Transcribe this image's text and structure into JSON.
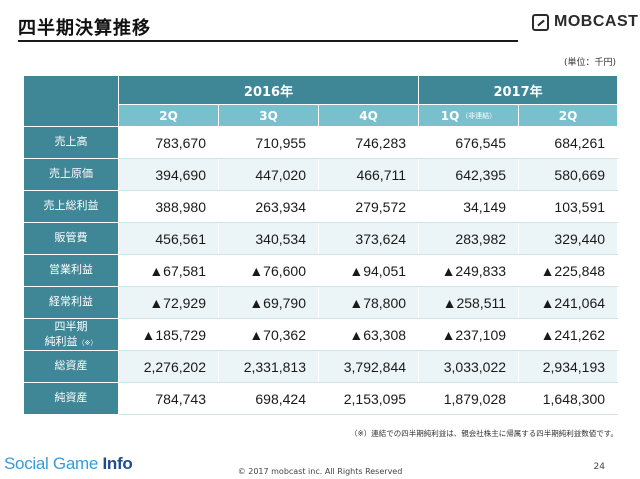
{
  "title": "四半期決算推移",
  "logo_text": "MOBCAST",
  "unit_note": "(単位：千円)",
  "years": [
    {
      "label": "2016年",
      "span": 3
    },
    {
      "label": "2017年",
      "span": 2
    }
  ],
  "quarters": [
    {
      "label": "2Q",
      "sub": ""
    },
    {
      "label": "3Q",
      "sub": ""
    },
    {
      "label": "4Q",
      "sub": ""
    },
    {
      "label": "1Q",
      "sub": "（非連結）"
    },
    {
      "label": "2Q",
      "sub": ""
    }
  ],
  "rows": [
    {
      "label": "売上高",
      "label2": "",
      "values": [
        "783,670",
        "710,955",
        "746,283",
        "676,545",
        "684,261"
      ]
    },
    {
      "label": "売上原価",
      "label2": "",
      "values": [
        "394,690",
        "447,020",
        "466,711",
        "642,395",
        "580,669"
      ]
    },
    {
      "label": "売上総利益",
      "label2": "",
      "values": [
        "388,980",
        "263,934",
        "279,572",
        "34,149",
        "103,591"
      ]
    },
    {
      "label": "販管費",
      "label2": "",
      "values": [
        "456,561",
        "340,534",
        "373,624",
        "283,982",
        "329,440"
      ]
    },
    {
      "label": "営業利益",
      "label2": "",
      "values": [
        "▲67,581",
        "▲76,600",
        "▲94,051",
        "▲249,833",
        "▲225,848"
      ]
    },
    {
      "label": "経常利益",
      "label2": "",
      "values": [
        "▲72,929",
        "▲69,790",
        "▲78,800",
        "▲258,511",
        "▲241,064"
      ]
    },
    {
      "label": "四半期",
      "label2": "純利益",
      "label2_note": "（※）",
      "values": [
        "▲185,729",
        "▲70,362",
        "▲63,308",
        "▲237,109",
        "▲241,262"
      ]
    },
    {
      "label": "総資産",
      "label2": "",
      "values": [
        "2,276,202",
        "2,331,813",
        "3,792,844",
        "3,033,022",
        "2,934,193"
      ]
    },
    {
      "label": "純資産",
      "label2": "",
      "values": [
        "784,743",
        "698,424",
        "2,153,095",
        "1,879,028",
        "1,648,300"
      ]
    }
  ],
  "footnote": "（※）連結での四半期純利益は、親会社株主に帰属する四半期純利益数値です。",
  "footer": {
    "brand_light": "Social Game ",
    "brand_bold": "Info",
    "copyright": "© 2017 mobcast inc. All Rights Reserved",
    "page_number": "24"
  }
}
